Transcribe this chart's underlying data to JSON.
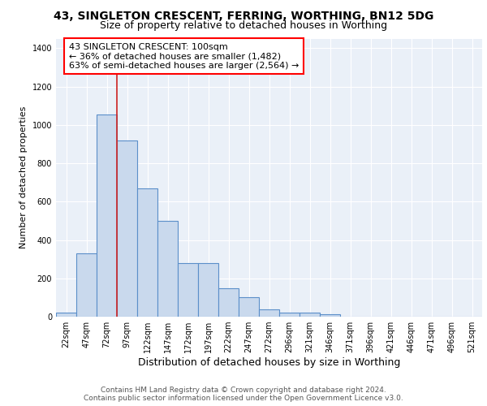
{
  "title1": "43, SINGLETON CRESCENT, FERRING, WORTHING, BN12 5DG",
  "title2": "Size of property relative to detached houses in Worthing",
  "xlabel": "Distribution of detached houses by size in Worthing",
  "ylabel": "Number of detached properties",
  "categories": [
    "22sqm",
    "47sqm",
    "72sqm",
    "97sqm",
    "122sqm",
    "147sqm",
    "172sqm",
    "197sqm",
    "222sqm",
    "247sqm",
    "272sqm",
    "296sqm",
    "321sqm",
    "346sqm",
    "371sqm",
    "396sqm",
    "421sqm",
    "446sqm",
    "471sqm",
    "496sqm",
    "521sqm"
  ],
  "values": [
    20,
    330,
    1055,
    920,
    670,
    500,
    280,
    280,
    150,
    100,
    40,
    20,
    20,
    12,
    0,
    0,
    0,
    0,
    0,
    0,
    0
  ],
  "bar_color": "#c9d9ed",
  "bar_edge_color": "#5b8fc9",
  "vline_color": "#cc2222",
  "vline_x": 2.5,
  "annotation_text": "43 SINGLETON CRESCENT: 100sqm\n← 36% of detached houses are smaller (1,482)\n63% of semi-detached houses are larger (2,564) →",
  "ylim": [
    0,
    1450
  ],
  "yticks": [
    0,
    200,
    400,
    600,
    800,
    1000,
    1200,
    1400
  ],
  "bg_color": "#eaf0f8",
  "footer": "Contains HM Land Registry data © Crown copyright and database right 2024.\nContains public sector information licensed under the Open Government Licence v3.0.",
  "title1_fontsize": 10,
  "title2_fontsize": 9,
  "xlabel_fontsize": 9,
  "ylabel_fontsize": 8,
  "tick_fontsize": 7,
  "annotation_fontsize": 8,
  "footer_fontsize": 6.5
}
